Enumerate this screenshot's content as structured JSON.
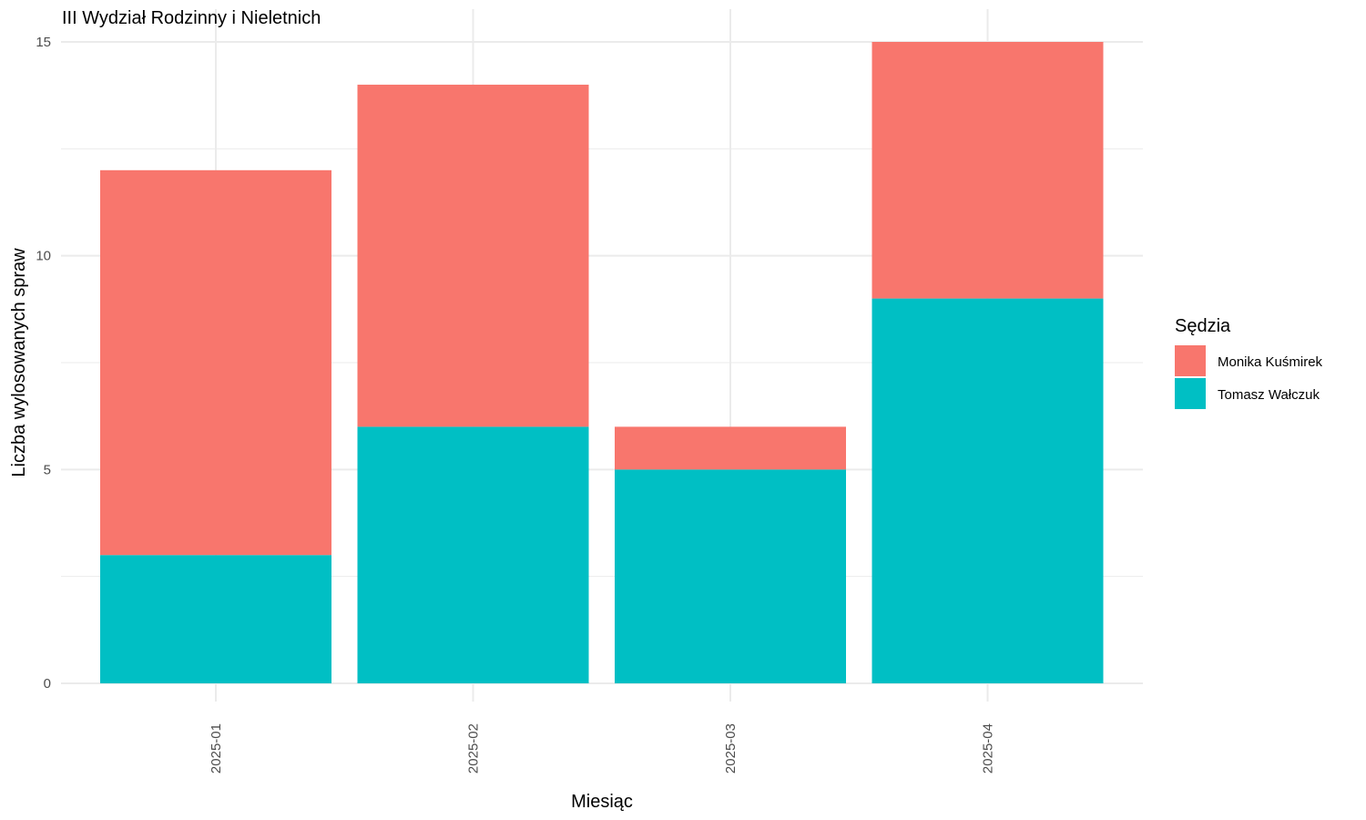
{
  "chart_data": {
    "type": "bar",
    "stacked": true,
    "title": "III Wydział Rodzinny i Nieletnich",
    "xlabel": "Miesiąc",
    "ylabel": "Liczba wylosowanych spraw",
    "categories": [
      "2025-01",
      "2025-02",
      "2025-03",
      "2025-04"
    ],
    "series": [
      {
        "name": "Tomasz Wałczuk",
        "color": "#00BFC4",
        "values": [
          3,
          6,
          5,
          9
        ]
      },
      {
        "name": "Monika Kuśmirek",
        "color": "#F8766D",
        "values": [
          9,
          8,
          1,
          6
        ]
      }
    ],
    "ylim": [
      0,
      15
    ],
    "yticks": [
      0,
      5,
      10,
      15
    ],
    "grid": true,
    "legend": {
      "title": "Sędzia",
      "placement": "right",
      "order": [
        "Monika Kuśmirek",
        "Tomasz Wałczuk"
      ]
    }
  }
}
